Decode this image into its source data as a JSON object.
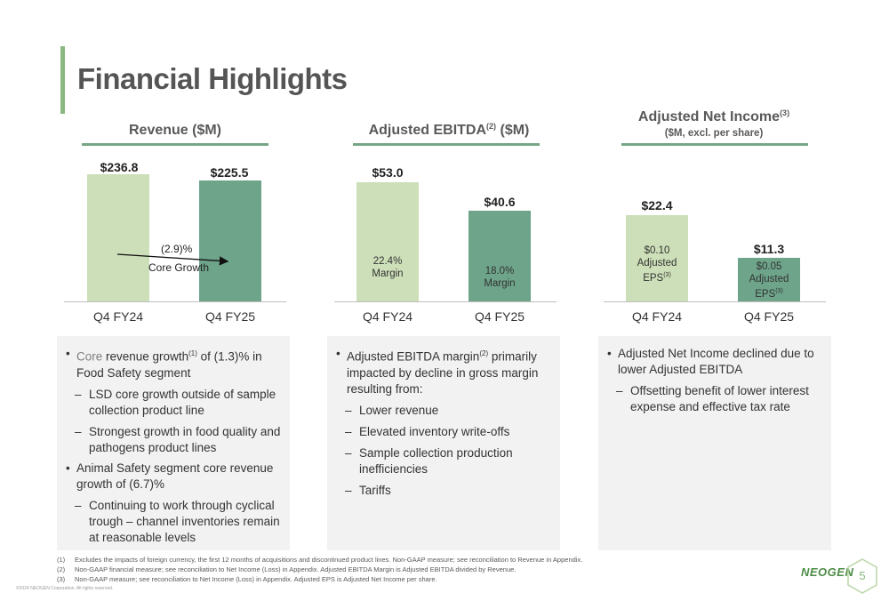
{
  "page": {
    "title": "Financial Highlights",
    "page_number": "5",
    "logo_text": "NEOGEN",
    "copyright": "©2024 NEOGEN Corporation. All rights reserved."
  },
  "charts": {
    "revenue": {
      "title": "Revenue ($M)",
      "categories": [
        "Q4 FY24",
        "Q4 FY25"
      ],
      "value_labels": [
        "$236.8",
        "$225.5"
      ],
      "growth_label": "(2.9)%",
      "growth_caption": "Core Growth"
    },
    "ebitda": {
      "title": "Adjusted EBITDA",
      "title_sup": "(2)",
      "title_suffix": "($M)",
      "categories": [
        "Q4 FY24",
        "Q4 FY25"
      ],
      "value_labels": [
        "$53.0",
        "$40.6"
      ],
      "margins": [
        "22.4%",
        "18.0%"
      ],
      "margin_word": "Margin"
    },
    "net_income": {
      "title": "Adjusted Net Income",
      "title_sup": "(3)",
      "subtitle": "($M, excl. per share)",
      "categories": [
        "Q4 FY24",
        "Q4 FY25"
      ],
      "value_labels": [
        "$22.4",
        "$11.3"
      ],
      "eps": [
        "$0.10",
        "$0.05"
      ],
      "eps_word1": "Adjusted",
      "eps_word2": "EPS",
      "eps_sup": "(3)"
    }
  },
  "chart_data": [
    {
      "type": "bar",
      "title": "Revenue ($M)",
      "categories": [
        "Q4 FY24",
        "Q4 FY25"
      ],
      "values": [
        236.8,
        225.5
      ]
    },
    {
      "type": "bar",
      "title": "Adjusted EBITDA(2) ($M)",
      "categories": [
        "Q4 FY24",
        "Q4 FY25"
      ],
      "values": [
        53.0,
        40.6
      ]
    },
    {
      "type": "bar",
      "title": "Adjusted Net Income(3)",
      "categories": [
        "Q4 FY24",
        "Q4 FY25"
      ],
      "values": [
        22.4,
        11.3
      ]
    }
  ],
  "panels": {
    "revenue": {
      "b1_gray": "Core",
      "b1_text_a": " revenue growth",
      "b1_sup": "(1)",
      "b1_text_b": " of (1.3)% in Food Safety segment",
      "b1_sub1": "LSD core growth outside of sample collection product line",
      "b1_sub2": "Strongest growth in food quality and pathogens product lines",
      "b2": "Animal Safety segment core revenue growth of (6.7)%",
      "b2_sub1": "Continuing to work through cyclical trough – channel inventories remain at reasonable levels"
    },
    "ebitda": {
      "b1_a": "Adjusted EBITDA margin",
      "b1_sup": "(2)",
      "b1_b": " primarily impacted by decline in gross margin resulting from:",
      "subs": [
        "Lower revenue",
        "Elevated inventory write-offs",
        "Sample collection production inefficiencies",
        "Tariffs"
      ]
    },
    "net_income": {
      "b1": "Adjusted Net Income declined due to lower Adjusted EBITDA",
      "sub1": "Offsetting benefit of lower interest expense and effective tax rate"
    }
  },
  "footnotes": [
    {
      "num": "(1)",
      "text": "Excludes the impacts of foreign currency, the first 12 months of acquisitions and discontinued product lines.  Non-GAAP measure; see reconciliation to Revenue in Appendix."
    },
    {
      "num": "(2)",
      "text": "Non-GAAP financial measure; see reconciliation to Net Income (Loss) in Appendix.  Adjusted EBITDA Margin is Adjusted EBITDA divided by Revenue."
    },
    {
      "num": "(3)",
      "text": "Non-GAAP measure; see reconciliation to Net Income (Loss) in Appendix.  Adjusted EPS is Adjusted Net Income per share."
    }
  ]
}
